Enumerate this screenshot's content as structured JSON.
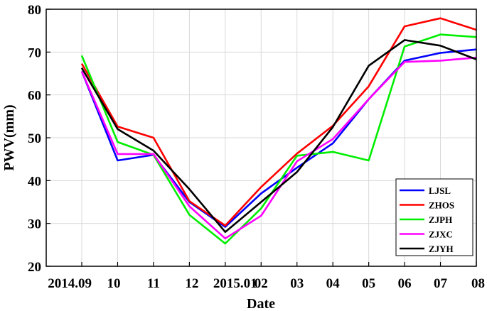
{
  "chart_data": {
    "type": "line",
    "xlabel": "Date",
    "ylabel": "PWV(mm)",
    "categories": [
      "2014.09",
      "10",
      "11",
      "12",
      "2015.01",
      "02",
      "03",
      "04",
      "05",
      "06",
      "07",
      "08"
    ],
    "ylim": [
      20,
      80
    ],
    "yticks": [
      "20",
      "30",
      "40",
      "50",
      "60",
      "70",
      "80"
    ],
    "grid": true,
    "legend_position": "bottom-right",
    "series": [
      {
        "name": "LJSL",
        "color": "#0000ff",
        "values": [
          65.5,
          44.7,
          46.0,
          35.0,
          29.2,
          37.0,
          43.0,
          48.7,
          59.0,
          68.0,
          69.8,
          70.6
        ]
      },
      {
        "name": "ZHOS",
        "color": "#ff0000",
        "values": [
          67.3,
          52.6,
          50.0,
          35.2,
          29.5,
          38.5,
          46.3,
          52.8,
          62.0,
          76.0,
          77.9,
          75.2
        ]
      },
      {
        "name": "ZJPH",
        "color": "#00ee00",
        "values": [
          69.2,
          49.0,
          46.0,
          32.0,
          25.3,
          33.5,
          45.8,
          46.7,
          44.7,
          71.3,
          74.1,
          73.5
        ]
      },
      {
        "name": "ZJXC",
        "color": "#ff00ff",
        "values": [
          65.5,
          46.2,
          46.2,
          34.0,
          26.5,
          31.8,
          44.5,
          49.7,
          59.0,
          67.7,
          68.0,
          68.7
        ]
      },
      {
        "name": "ZJYH",
        "color": "#000000",
        "values": [
          66.3,
          52.0,
          47.0,
          38.0,
          28.0,
          35.0,
          42.0,
          52.5,
          66.8,
          72.8,
          71.5,
          68.3
        ]
      }
    ]
  }
}
